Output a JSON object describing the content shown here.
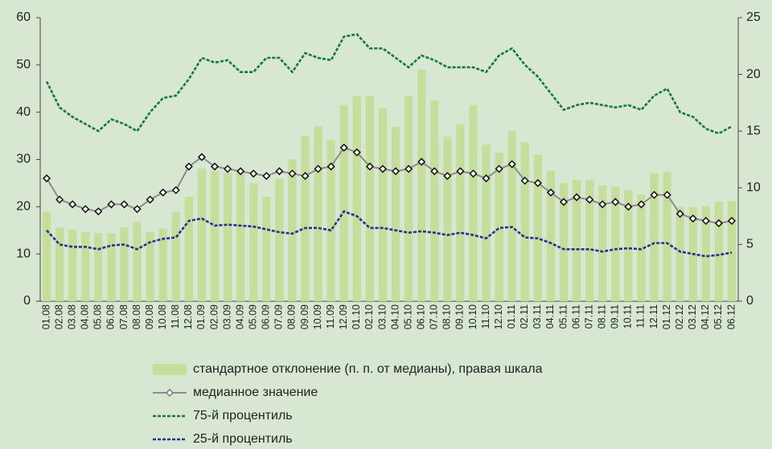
{
  "chart_data": {
    "type": "combo",
    "categories": [
      "01.08",
      "02.08",
      "03.08",
      "04.08",
      "05.08",
      "06.08",
      "07.08",
      "08.08",
      "09.08",
      "10.08",
      "11.08",
      "12.08",
      "01.09",
      "02.09",
      "03.09",
      "04.09",
      "05.09",
      "06.09",
      "07.09",
      "08.09",
      "09.09",
      "10.09",
      "11.09",
      "12.09",
      "01.10",
      "02.10",
      "03.10",
      "04.10",
      "05.10",
      "06.10",
      "07.10",
      "08.10",
      "09.10",
      "10.10",
      "11.10",
      "12.10",
      "01.11",
      "02.11",
      "03.11",
      "04.11",
      "05.11",
      "06.11",
      "07.11",
      "08.11",
      "09.11",
      "10.11",
      "11.11",
      "12.11",
      "01.12",
      "02.12",
      "03.12",
      "04.12",
      "05.12",
      "06.12"
    ],
    "series": [
      {
        "name": "стандартное отклонение (п. п. от медианы), правая шкала",
        "type": "bar",
        "axis": "y2",
        "color": "#c6de9c",
        "values": [
          7.9,
          6.5,
          6.3,
          6.1,
          6.0,
          6.0,
          6.5,
          7.0,
          6.1,
          6.4,
          7.9,
          9.2,
          11.7,
          11.5,
          11.3,
          11.5,
          10.4,
          9.2,
          10.8,
          12.5,
          14.6,
          15.4,
          14.2,
          17.3,
          18.1,
          18.1,
          17.0,
          15.4,
          18.1,
          20.4,
          17.7,
          14.5,
          15.6,
          17.3,
          13.8,
          13.1,
          15.0,
          14.0,
          12.9,
          11.5,
          10.4,
          10.7,
          10.7,
          10.2,
          10.1,
          9.8,
          9.4,
          11.3,
          11.4,
          8.3,
          8.3,
          8.4,
          8.8,
          8.8
        ]
      },
      {
        "name": "медианное значение",
        "type": "line",
        "color": "#8c8c8c",
        "marker": "diamond",
        "values": [
          26,
          21.5,
          20.5,
          19.5,
          19,
          20.5,
          20.5,
          19.5,
          21.5,
          23,
          23.5,
          28.5,
          30.5,
          28.5,
          28,
          27.5,
          27,
          26.5,
          27.5,
          27,
          26.5,
          28,
          28.5,
          32.5,
          31.5,
          28.5,
          28,
          27.5,
          28,
          29.5,
          27.5,
          26.5,
          27.5,
          27,
          26,
          28,
          29,
          25.5,
          25,
          23,
          21,
          22,
          21.5,
          20.5,
          21,
          20,
          20.5,
          22.5,
          22.5,
          18.5,
          17.5,
          17,
          16.5,
          17
        ]
      },
      {
        "name": "75-й процентиль",
        "type": "line",
        "color": "#137a3c",
        "dash": true,
        "values": [
          46.5,
          41,
          39,
          37.5,
          36,
          38.5,
          37.5,
          36,
          40,
          43,
          43.5,
          47,
          51.5,
          50.5,
          51,
          48.5,
          48.5,
          51.5,
          51.5,
          48.5,
          52.5,
          51.5,
          51,
          56,
          56.5,
          53.5,
          53.5,
          51.5,
          49.5,
          52,
          51,
          49.5,
          49.5,
          49.5,
          48.5,
          52,
          53.5,
          50,
          47.5,
          44,
          40.5,
          41.5,
          42,
          41.5,
          41,
          41.5,
          40.5,
          43.5,
          45,
          40,
          39,
          36.5,
          35.5,
          37
        ]
      },
      {
        "name": "25-й процентиль",
        "type": "line",
        "color": "#2b2f8f",
        "dash": true,
        "values": [
          15,
          12,
          11.5,
          11.5,
          11,
          11.8,
          12,
          11,
          12.5,
          13.2,
          13.5,
          17,
          17.5,
          16,
          16.2,
          16,
          15.8,
          15.2,
          14.6,
          14.3,
          15.5,
          15.5,
          15,
          19,
          18,
          15.5,
          15.5,
          15,
          14.5,
          14.8,
          14.5,
          14,
          14.5,
          14,
          13.3,
          15.5,
          15.7,
          13.5,
          13.3,
          12.3,
          11,
          11,
          11,
          10.5,
          11,
          11.2,
          11,
          12.3,
          12.3,
          10.5,
          10,
          9.5,
          9.8,
          10.3
        ]
      }
    ],
    "ylim": [
      0,
      60
    ],
    "yticks": [
      0,
      10,
      20,
      30,
      40,
      50,
      60
    ],
    "y2lim": [
      0,
      25
    ],
    "y2ticks": [
      0,
      5,
      10,
      15,
      20,
      25
    ],
    "grid": false,
    "legend": "bottom"
  }
}
